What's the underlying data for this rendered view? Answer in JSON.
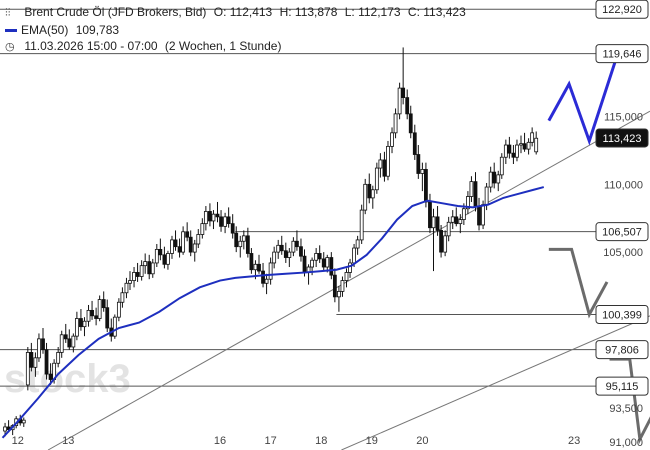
{
  "header": {
    "instrument": "Brent Crude Öl (JFD Brokers, Bid)",
    "open": "O: 112,413",
    "high": "H: 113,878",
    "low": "L: 112,173",
    "close": "C: 113,423",
    "ema_label": "EMA(50)",
    "ema_value": "109,783",
    "datetime": "11.03.2026 15:00 - 07:00",
    "range": "(2 Wochen, 1 Stunde)"
  },
  "watermark": "stock3",
  "colors": {
    "ema": "#1e2fbf",
    "projection": "#2b2bd6",
    "grey_projection": "#6b6b6b"
  },
  "chart_data": {
    "type": "candlestick",
    "title": "Brent Crude Öl (JFD Brokers, Bid)",
    "x_ticks": [
      {
        "label": "12",
        "x": 12
      },
      {
        "label": "13",
        "x": 13
      },
      {
        "label": "16",
        "x": 16
      },
      {
        "label": "17",
        "x": 17
      },
      {
        "label": "18",
        "x": 18
      },
      {
        "label": "19",
        "x": 19
      },
      {
        "label": "20",
        "x": 20
      },
      {
        "label": "23",
        "x": 23
      }
    ],
    "y_ticks": [
      {
        "label": "115,000",
        "v": 115.0
      },
      {
        "label": "110,000",
        "v": 110.0
      },
      {
        "label": "105,000",
        "v": 105.0
      },
      {
        "label": "93,500",
        "v": 93.5
      },
      {
        "label": "91,000",
        "v": 91.0
      }
    ],
    "horizontal_levels": [
      {
        "label": "122,920",
        "v": 122.92,
        "from": 11.5,
        "style": "plain"
      },
      {
        "label": "119,646",
        "v": 119.646,
        "from": 11.5,
        "style": "plain"
      },
      {
        "label": "106,507",
        "v": 106.507,
        "from": 16.3,
        "style": "plain"
      },
      {
        "label": "100,399",
        "v": 100.399,
        "from": 18.3,
        "style": "plain"
      },
      {
        "label": "97,806",
        "v": 97.806,
        "from": 11.5,
        "style": "plain"
      },
      {
        "label": "95,115",
        "v": 95.115,
        "from": 11.5,
        "style": "plain"
      },
      {
        "label": "113,423",
        "v": 113.423,
        "from": 23.5,
        "style": "current"
      }
    ],
    "ylim": [
      90.4,
      123.6
    ],
    "xlim": [
      11.65,
      24.5
    ],
    "ema": [
      [
        11.7,
        91.3
      ],
      [
        12.0,
        92.5
      ],
      [
        12.4,
        94.2
      ],
      [
        12.8,
        96.0
      ],
      [
        13.2,
        97.4
      ],
      [
        13.6,
        98.6
      ],
      [
        14.0,
        99.4
      ],
      [
        14.4,
        99.8
      ],
      [
        14.8,
        100.6
      ],
      [
        15.2,
        101.6
      ],
      [
        15.6,
        102.4
      ],
      [
        16.0,
        102.9
      ],
      [
        16.3,
        103.1
      ],
      [
        16.6,
        103.2
      ],
      [
        16.9,
        103.3
      ],
      [
        17.3,
        103.4
      ],
      [
        17.7,
        103.5
      ],
      [
        18.0,
        103.6
      ],
      [
        18.3,
        103.7
      ],
      [
        18.6,
        104.0
      ],
      [
        18.9,
        104.8
      ],
      [
        19.2,
        106.0
      ],
      [
        19.5,
        107.4
      ],
      [
        19.8,
        108.4
      ],
      [
        20.1,
        108.8
      ],
      [
        20.4,
        108.6
      ],
      [
        20.7,
        108.4
      ],
      [
        21.0,
        108.3
      ],
      [
        21.3,
        108.5
      ],
      [
        21.6,
        109.0
      ],
      [
        21.9,
        109.3
      ],
      [
        22.2,
        109.6
      ],
      [
        22.4,
        109.8
      ]
    ],
    "trendlines": [
      {
        "p1": [
          12.6,
          90.4
        ],
        "p2": [
          24.5,
          115.4
        ]
      },
      {
        "p1": [
          18.4,
          90.4
        ],
        "p2": [
          24.5,
          100.3
        ]
      }
    ],
    "projection_blue": [
      [
        22.5,
        114.7
      ],
      [
        22.9,
        117.4
      ],
      [
        23.3,
        113.2
      ],
      [
        23.85,
        119.5
      ]
    ],
    "projection_grey": [
      [
        22.5,
        105.2
      ],
      [
        22.95,
        105.2
      ],
      [
        23.3,
        100.4
      ],
      [
        23.65,
        102.8
      ]
    ],
    "projection_grey_2": [
      [
        23.7,
        97.1
      ],
      [
        24.1,
        97.1
      ],
      [
        24.3,
        91.2
      ],
      [
        24.55,
        93.0
      ]
    ],
    "candles": [
      [
        11.75,
        91.8,
        92.4,
        91.4,
        92.1
      ],
      [
        11.82,
        92.1,
        92.6,
        91.7,
        91.9
      ],
      [
        11.9,
        91.9,
        92.3,
        91.5,
        92.2
      ],
      [
        11.97,
        92.2,
        92.9,
        92.0,
        92.7
      ],
      [
        12.05,
        92.7,
        93.0,
        92.2,
        92.4
      ],
      [
        12.12,
        92.4,
        92.8,
        92.1,
        92.6
      ],
      [
        12.2,
        95.2,
        98.0,
        94.8,
        97.6
      ],
      [
        12.27,
        97.6,
        98.3,
        96.2,
        96.5
      ],
      [
        12.35,
        96.5,
        97.6,
        95.8,
        97.2
      ],
      [
        12.42,
        97.2,
        99.0,
        96.9,
        98.6
      ],
      [
        12.5,
        98.6,
        99.4,
        97.5,
        97.8
      ],
      [
        12.57,
        97.8,
        98.3,
        95.6,
        96.0
      ],
      [
        12.65,
        96.0,
        96.8,
        95.2,
        95.6
      ],
      [
        12.72,
        95.6,
        97.1,
        95.3,
        96.8
      ],
      [
        12.8,
        96.8,
        98.0,
        96.5,
        97.6
      ],
      [
        12.87,
        97.6,
        99.2,
        97.2,
        98.9
      ],
      [
        12.95,
        98.9,
        99.7,
        98.3,
        98.6
      ],
      [
        13.02,
        98.6,
        99.3,
        97.8,
        98.0
      ],
      [
        13.1,
        98.0,
        99.0,
        97.6,
        98.8
      ],
      [
        13.17,
        98.8,
        100.6,
        98.5,
        100.1
      ],
      [
        13.25,
        100.1,
        100.8,
        99.2,
        99.5
      ],
      [
        13.32,
        99.5,
        100.2,
        98.8,
        99.9
      ],
      [
        13.4,
        99.9,
        101.1,
        99.5,
        100.7
      ],
      [
        13.47,
        100.7,
        101.4,
        100.0,
        100.3
      ],
      [
        13.55,
        100.3,
        100.9,
        99.6,
        100.1
      ],
      [
        13.62,
        100.1,
        101.8,
        99.9,
        101.5
      ],
      [
        13.7,
        101.5,
        102.1,
        100.6,
        100.9
      ],
      [
        13.77,
        100.9,
        101.5,
        99.1,
        99.4
      ],
      [
        13.85,
        99.4,
        100.1,
        98.4,
        98.8
      ],
      [
        13.92,
        98.8,
        100.4,
        98.6,
        100.2
      ],
      [
        14.0,
        100.2,
        101.6,
        99.9,
        101.3
      ],
      [
        14.07,
        101.3,
        102.4,
        100.9,
        102.0
      ],
      [
        14.15,
        102.0,
        103.1,
        101.6,
        102.7
      ],
      [
        14.22,
        102.7,
        103.6,
        102.2,
        102.9
      ],
      [
        14.3,
        102.9,
        103.9,
        102.4,
        103.5
      ],
      [
        14.37,
        103.5,
        104.2,
        102.8,
        103.2
      ],
      [
        14.45,
        103.2,
        104.4,
        102.9,
        104.0
      ],
      [
        14.52,
        104.0,
        104.9,
        103.4,
        104.3
      ],
      [
        14.6,
        104.3,
        104.8,
        103.0,
        103.4
      ],
      [
        14.67,
        103.4,
        104.5,
        103.1,
        104.2
      ],
      [
        14.75,
        104.2,
        105.6,
        103.9,
        105.2
      ],
      [
        14.82,
        105.2,
        106.0,
        104.4,
        104.8
      ],
      [
        14.9,
        104.8,
        105.4,
        103.8,
        104.1
      ],
      [
        14.97,
        104.1,
        105.1,
        103.7,
        104.9
      ],
      [
        15.05,
        104.9,
        106.2,
        104.5,
        105.9
      ],
      [
        15.12,
        105.9,
        106.6,
        105.1,
        105.4
      ],
      [
        15.2,
        105.4,
        106.0,
        104.6,
        105.0
      ],
      [
        15.27,
        105.0,
        106.9,
        104.8,
        106.5
      ],
      [
        15.35,
        106.5,
        107.2,
        105.8,
        106.1
      ],
      [
        15.42,
        106.1,
        106.6,
        104.7,
        105.0
      ],
      [
        15.5,
        105.0,
        105.9,
        104.3,
        105.6
      ],
      [
        15.57,
        105.6,
        106.7,
        105.3,
        106.3
      ],
      [
        15.65,
        106.3,
        107.5,
        106.0,
        107.1
      ],
      [
        15.72,
        107.1,
        108.4,
        106.6,
        108.0
      ],
      [
        15.8,
        108.0,
        108.6,
        106.9,
        107.3
      ],
      [
        15.87,
        107.3,
        108.1,
        106.7,
        107.8
      ],
      [
        15.95,
        107.8,
        108.7,
        107.2,
        107.6
      ],
      [
        16.02,
        107.6,
        108.1,
        106.5,
        106.9
      ],
      [
        16.1,
        106.9,
        107.9,
        106.4,
        107.6
      ],
      [
        16.17,
        107.6,
        108.3,
        106.8,
        107.1
      ],
      [
        16.25,
        107.1,
        107.8,
        106.0,
        106.4
      ],
      [
        16.32,
        106.4,
        106.9,
        105.0,
        105.4
      ],
      [
        16.4,
        105.4,
        106.2,
        104.6,
        105.8
      ],
      [
        16.47,
        105.8,
        106.6,
        105.2,
        106.2
      ],
      [
        16.55,
        106.2,
        106.8,
        104.6,
        104.9
      ],
      [
        16.62,
        104.9,
        105.3,
        103.4,
        103.7
      ],
      [
        16.7,
        103.7,
        104.4,
        103.0,
        104.1
      ],
      [
        16.77,
        104.1,
        104.8,
        103.4,
        103.6
      ],
      [
        16.85,
        103.6,
        104.2,
        102.4,
        102.7
      ],
      [
        16.92,
        102.7,
        103.4,
        101.9,
        103.0
      ],
      [
        17.0,
        103.0,
        104.6,
        102.6,
        104.2
      ],
      [
        17.07,
        104.2,
        105.4,
        103.8,
        105.0
      ],
      [
        17.15,
        105.0,
        105.9,
        104.5,
        105.5
      ],
      [
        17.22,
        105.5,
        106.2,
        104.8,
        105.1
      ],
      [
        17.3,
        105.1,
        105.7,
        104.2,
        104.6
      ],
      [
        17.37,
        104.6,
        105.3,
        103.9,
        105.0
      ],
      [
        17.45,
        105.0,
        106.1,
        104.7,
        105.8
      ],
      [
        17.52,
        105.8,
        106.6,
        105.1,
        105.4
      ],
      [
        17.6,
        105.4,
        106.0,
        104.3,
        104.7
      ],
      [
        17.67,
        104.7,
        105.2,
        103.2,
        103.5
      ],
      [
        17.75,
        103.5,
        104.1,
        102.6,
        103.9
      ],
      [
        17.82,
        103.9,
        104.6,
        103.3,
        104.4
      ],
      [
        17.9,
        104.4,
        105.3,
        103.9,
        104.9
      ],
      [
        17.97,
        104.9,
        105.5,
        104.2,
        104.5
      ],
      [
        18.05,
        104.5,
        105.0,
        103.6,
        103.9
      ],
      [
        18.12,
        103.9,
        104.8,
        103.5,
        104.6
      ],
      [
        18.2,
        104.6,
        105.0,
        103.0,
        103.3
      ],
      [
        18.27,
        103.3,
        103.8,
        101.3,
        101.7
      ],
      [
        18.35,
        101.7,
        102.5,
        100.6,
        102.1
      ],
      [
        18.42,
        102.1,
        103.2,
        101.7,
        102.9
      ],
      [
        18.5,
        102.9,
        103.8,
        102.4,
        103.5
      ],
      [
        18.57,
        103.5,
        104.5,
        103.1,
        104.2
      ],
      [
        18.65,
        104.2,
        105.6,
        103.9,
        105.3
      ],
      [
        18.72,
        105.3,
        106.2,
        104.8,
        105.9
      ],
      [
        18.8,
        105.9,
        108.5,
        105.6,
        108.1
      ],
      [
        18.87,
        108.1,
        110.4,
        107.8,
        110.0
      ],
      [
        18.95,
        110.0,
        110.8,
        108.6,
        109.0
      ],
      [
        19.02,
        109.0,
        109.9,
        108.2,
        109.6
      ],
      [
        19.1,
        109.6,
        111.6,
        109.3,
        111.2
      ],
      [
        19.17,
        111.2,
        112.3,
        110.5,
        111.8
      ],
      [
        19.25,
        111.8,
        112.4,
        110.2,
        110.6
      ],
      [
        19.32,
        110.6,
        113.2,
        110.3,
        112.8
      ],
      [
        19.4,
        112.8,
        114.2,
        112.3,
        113.8
      ],
      [
        19.47,
        113.8,
        115.6,
        113.4,
        115.2
      ],
      [
        19.55,
        115.2,
        117.5,
        114.8,
        117.1
      ],
      [
        19.62,
        117.1,
        120.1,
        115.9,
        116.4
      ],
      [
        19.7,
        116.4,
        117.0,
        114.8,
        115.2
      ],
      [
        19.77,
        115.2,
        115.8,
        113.4,
        113.8
      ],
      [
        19.85,
        113.8,
        114.4,
        111.8,
        112.2
      ],
      [
        19.92,
        112.2,
        112.9,
        110.4,
        110.8
      ],
      [
        20.0,
        110.8,
        111.6,
        109.5,
        111.1
      ],
      [
        20.07,
        111.1,
        111.6,
        108.3,
        108.7
      ],
      [
        20.15,
        108.7,
        109.3,
        106.4,
        106.8
      ],
      [
        20.22,
        106.8,
        108.2,
        103.6,
        107.6
      ],
      [
        20.3,
        107.6,
        108.4,
        106.2,
        106.6
      ],
      [
        20.37,
        106.6,
        107.0,
        104.6,
        105.0
      ],
      [
        20.45,
        105.0,
        106.6,
        104.7,
        106.2
      ],
      [
        20.52,
        106.2,
        107.6,
        105.8,
        107.2
      ],
      [
        20.6,
        107.2,
        108.1,
        106.7,
        107.6
      ],
      [
        20.67,
        107.6,
        108.3,
        106.9,
        107.1
      ],
      [
        20.75,
        107.1,
        107.8,
        106.4,
        107.4
      ],
      [
        20.82,
        107.4,
        108.6,
        107.0,
        108.2
      ],
      [
        20.9,
        108.2,
        109.5,
        107.8,
        109.1
      ],
      [
        20.97,
        109.1,
        110.6,
        108.7,
        110.2
      ],
      [
        21.05,
        110.2,
        110.9,
        108.0,
        108.4
      ],
      [
        21.12,
        108.4,
        109.0,
        106.6,
        107.0
      ],
      [
        21.2,
        107.0,
        108.8,
        106.7,
        108.5
      ],
      [
        21.27,
        108.5,
        110.1,
        108.1,
        109.8
      ],
      [
        21.35,
        109.8,
        111.3,
        109.4,
        110.9
      ],
      [
        21.42,
        110.9,
        111.6,
        109.7,
        110.1
      ],
      [
        21.5,
        110.1,
        111.0,
        109.5,
        110.7
      ],
      [
        21.57,
        110.7,
        112.3,
        110.4,
        112.0
      ],
      [
        21.65,
        112.0,
        113.3,
        111.5,
        112.9
      ],
      [
        21.72,
        112.9,
        113.5,
        111.9,
        112.3
      ],
      [
        21.8,
        112.3,
        112.9,
        111.5,
        112.0
      ],
      [
        21.87,
        112.0,
        113.3,
        111.7,
        112.9
      ],
      [
        21.95,
        112.9,
        113.6,
        112.3,
        113.0
      ],
      [
        22.02,
        113.0,
        113.8,
        112.4,
        112.6
      ],
      [
        22.1,
        112.6,
        113.4,
        112.2,
        113.1
      ],
      [
        22.17,
        113.1,
        114.2,
        112.8,
        113.8
      ],
      [
        22.25,
        112.4,
        113.9,
        112.2,
        113.4
      ]
    ]
  }
}
